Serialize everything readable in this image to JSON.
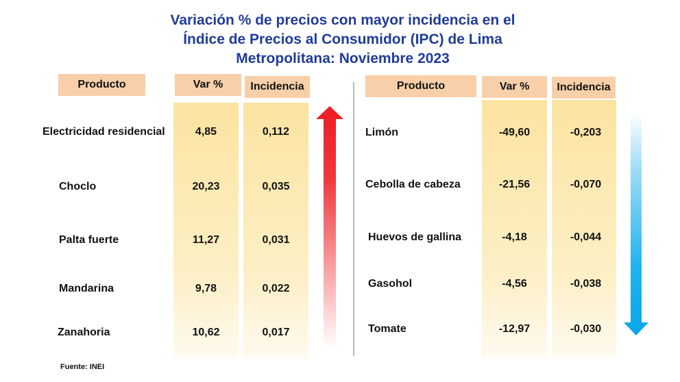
{
  "title": [
    "Variación % de precios con mayor incidencia en el",
    "Índice de Precios al Consumidor (IPC) de Lima",
    "Metropolitana: Noviembre 2023"
  ],
  "source": "Fuente: INEI",
  "colors": {
    "title": "#1f3c99",
    "header": "#f8cfa8",
    "column": "#fbe3a0",
    "up_arrow": "#ee2222",
    "down_arrow": "#11aaee"
  },
  "chart_data": {
    "type": "table",
    "title": "Variación % de precios con mayor incidencia en el Índice de Precios al Consumidor (IPC) de Lima Metropolitana: Noviembre 2023",
    "columns": [
      "Producto",
      "Var %",
      "Incidencia"
    ],
    "up": {
      "icon": "arrow-up-icon",
      "rows": [
        [
          "Electricidad residencial",
          "4,85",
          "0,112"
        ],
        [
          "Choclo",
          "20,23",
          "0,035"
        ],
        [
          "Palta fuerte",
          "11,27",
          "0,031"
        ],
        [
          "Mandarina",
          "9,78",
          "0,022"
        ],
        [
          "Zanahoria",
          "10,62",
          "0,017"
        ]
      ]
    },
    "down": {
      "icon": "arrow-down-icon",
      "rows": [
        [
          "Limón",
          "-49,60",
          "-0,203"
        ],
        [
          "Cebolla de cabeza",
          "-21,56",
          "-0,070"
        ],
        [
          "Huevos de gallina",
          "-4,18",
          "-0,044"
        ],
        [
          "Gasohol",
          "-4,56",
          "-0,038"
        ],
        [
          "Tomate",
          "-12,97",
          "-0,030"
        ]
      ]
    }
  }
}
